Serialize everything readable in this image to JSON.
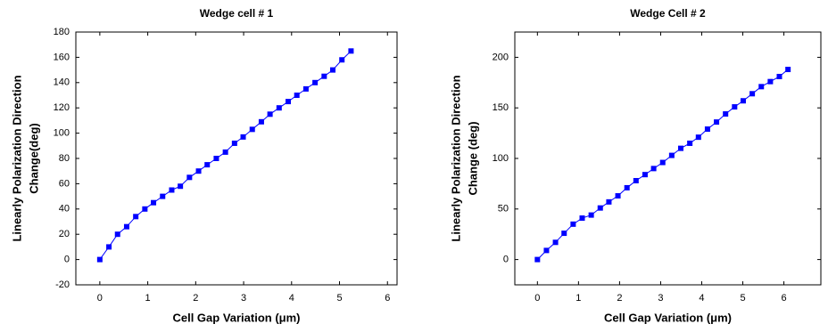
{
  "chart_data": [
    {
      "type": "line",
      "title": "Wedge cell # 1",
      "xlabel": "Cell Gap Variation (μm)",
      "ylabel": [
        "Linearly Polarization Direction",
        "Change(deg)"
      ],
      "x": [
        0,
        0.19,
        0.37,
        0.56,
        0.75,
        0.94,
        1.12,
        1.31,
        1.5,
        1.68,
        1.87,
        2.06,
        2.24,
        2.43,
        2.62,
        2.81,
        2.99,
        3.18,
        3.37,
        3.55,
        3.74,
        3.93,
        4.11,
        4.3,
        4.49,
        4.68,
        4.86,
        5.05,
        5.24
      ],
      "series": [
        {
          "color": "#0000ff",
          "values": [
            0,
            10,
            20,
            26,
            34,
            40,
            45,
            50,
            55,
            58,
            65,
            70,
            75,
            80,
            85,
            92,
            97,
            103,
            109,
            115,
            120,
            125,
            130,
            135,
            140,
            145,
            150,
            158,
            165
          ]
        }
      ],
      "xlim": [
        -0.5,
        6.2
      ],
      "ylim": [
        -20,
        180
      ],
      "xticks": [
        0,
        1,
        2,
        3,
        4,
        5,
        6
      ],
      "yticks": [
        -20,
        0,
        20,
        40,
        60,
        80,
        100,
        120,
        140,
        160,
        180
      ]
    },
    {
      "type": "line",
      "title": "Wedge Cell # 2",
      "xlabel": "Cell Gap Variation (μm)",
      "ylabel": [
        "Linearly Polarization Direction",
        "Change (deg)"
      ],
      "x": [
        0,
        0.22,
        0.44,
        0.65,
        0.87,
        1.09,
        1.31,
        1.53,
        1.74,
        1.96,
        2.18,
        2.4,
        2.62,
        2.83,
        3.05,
        3.27,
        3.49,
        3.71,
        3.92,
        4.14,
        4.36,
        4.58,
        4.8,
        5.01,
        5.23,
        5.45,
        5.67,
        5.89,
        6.1
      ],
      "series": [
        {
          "color": "#0000ff",
          "values": [
            0,
            9,
            17,
            26,
            35,
            41,
            44,
            51,
            57,
            63,
            71,
            78,
            84,
            90,
            96,
            103,
            110,
            115,
            121,
            129,
            136,
            144,
            151,
            157,
            164,
            171,
            176,
            181,
            188
          ]
        }
      ],
      "xlim": [
        -0.55,
        6.9
      ],
      "ylim": [
        -25,
        225
      ],
      "xticks": [
        0,
        1,
        2,
        3,
        4,
        5,
        6
      ],
      "yticks": [
        0,
        50,
        100,
        150,
        200
      ]
    }
  ]
}
